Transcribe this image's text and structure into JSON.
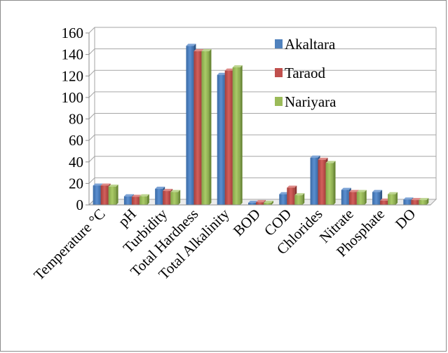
{
  "chart_data": {
    "type": "bar",
    "title": "",
    "xlabel": "",
    "ylabel": "",
    "ylim": [
      0,
      160
    ],
    "yticks": [
      0,
      20,
      40,
      60,
      80,
      100,
      120,
      140,
      160
    ],
    "grid": true,
    "legend_position": "top-right",
    "categories": [
      "Temperature °C",
      "pH",
      "Turbidity",
      "Total Hardness",
      "Total Alkalinity",
      "BOD",
      "COD",
      "Chlorides",
      "Nitrate",
      "Phosphate",
      "DO"
    ],
    "series": [
      {
        "name": "Akaltara",
        "color": "#4f81bd",
        "values": [
          18,
          8,
          15,
          148,
          121,
          2,
          10,
          44,
          14,
          12,
          5
        ]
      },
      {
        "name": "Taraod",
        "color": "#c0504d",
        "values": [
          18,
          7.5,
          13,
          143,
          125,
          2.5,
          16,
          42,
          12,
          4,
          4.5
        ]
      },
      {
        "name": "Nariyara",
        "color": "#9bbb59",
        "values": [
          17,
          8,
          12,
          143,
          128,
          2,
          9,
          39,
          12,
          10,
          4.5
        ]
      }
    ]
  }
}
